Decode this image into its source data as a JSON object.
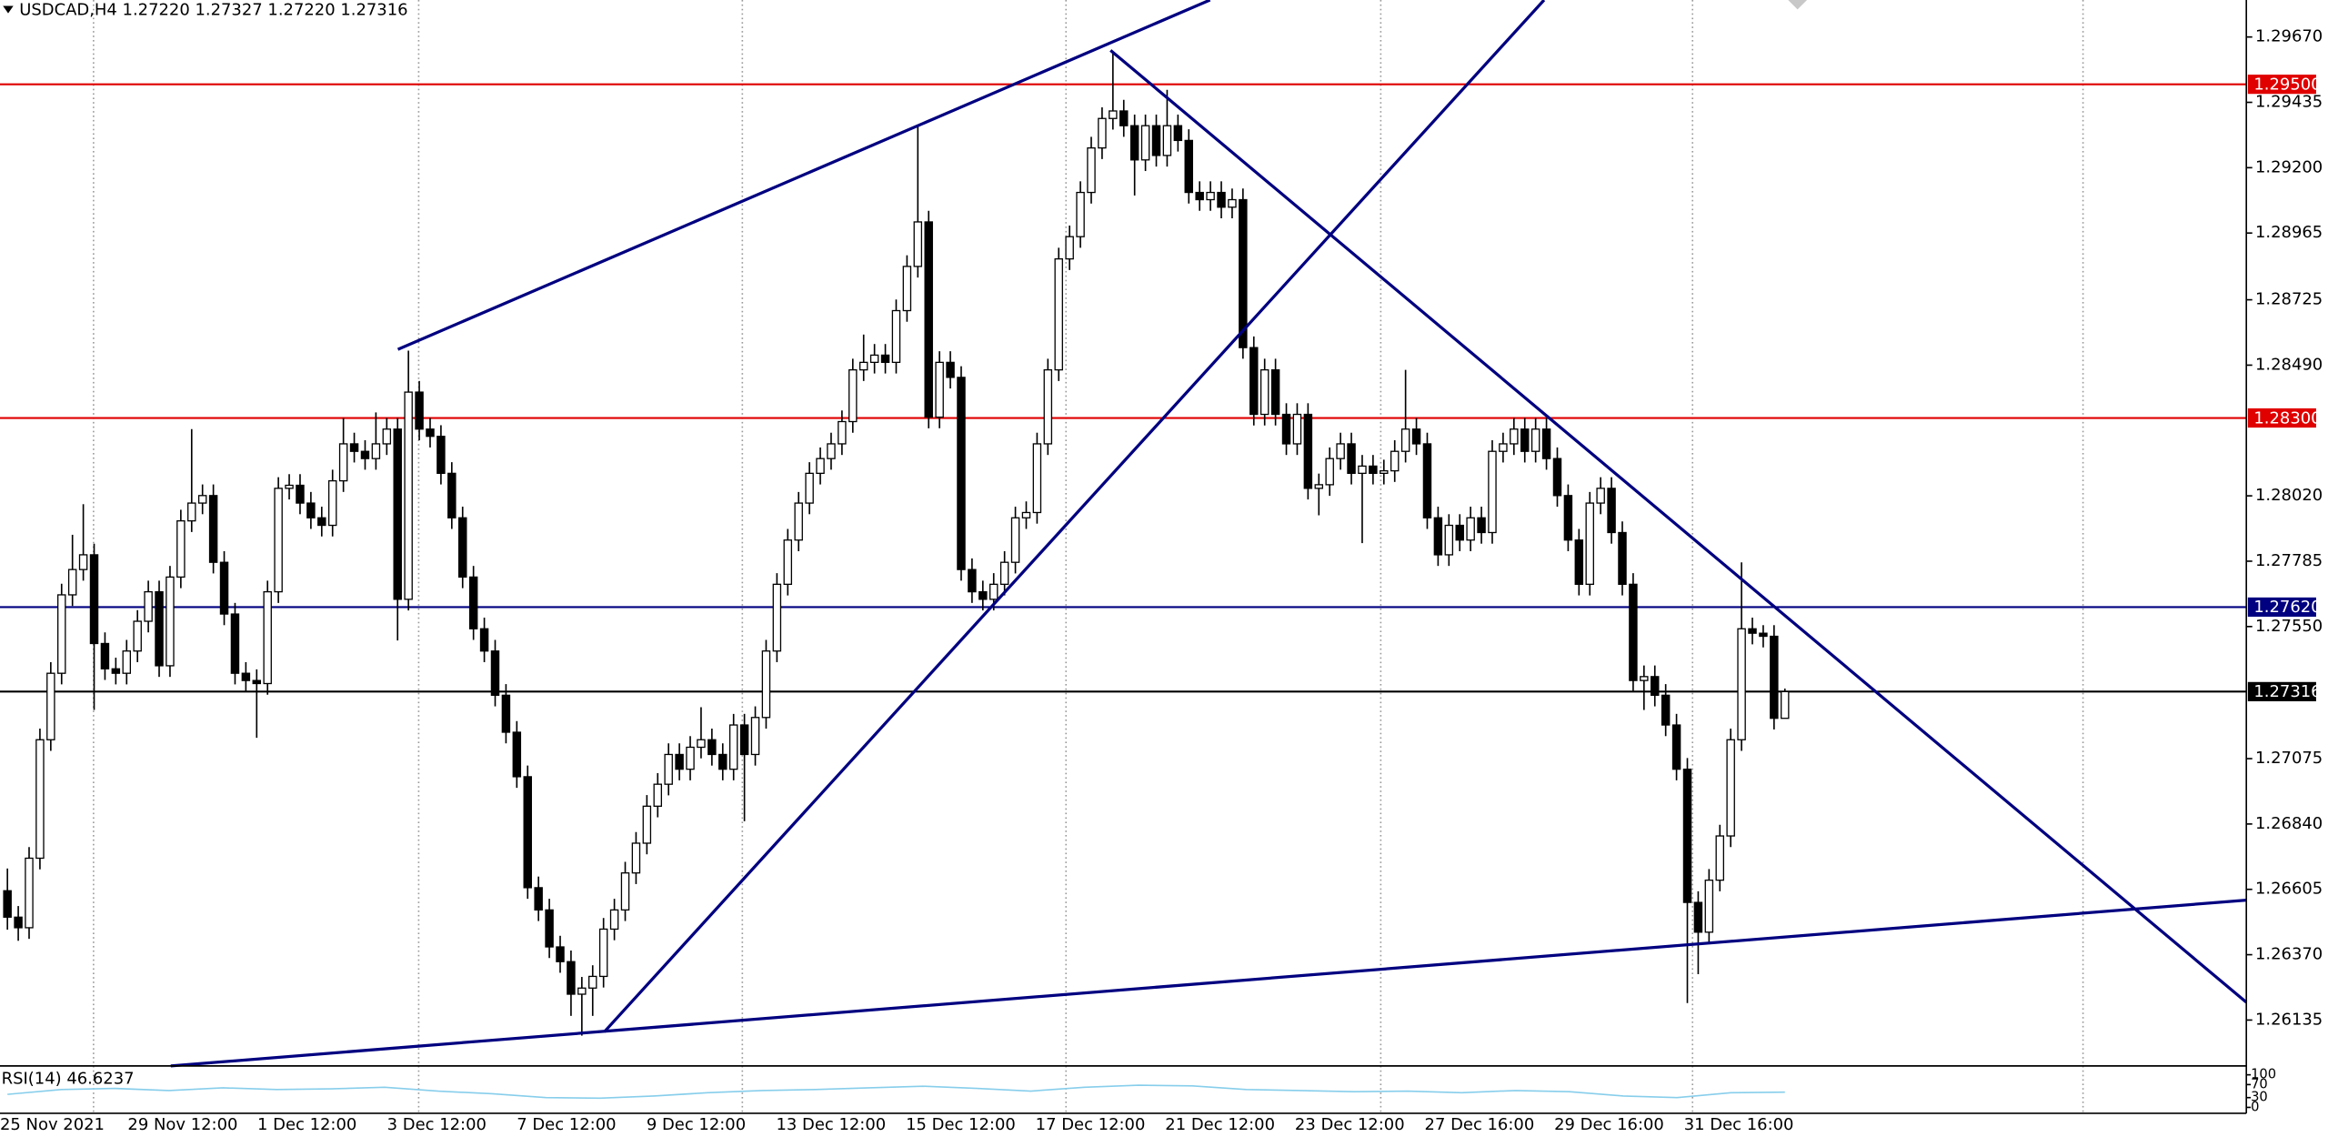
{
  "chart_data": {
    "type": "candlestick",
    "title": "USDCAD,H4  1.27220 1.27327 1.27220 1.27316",
    "ylim": [
      1.2597,
      1.29803
    ],
    "yticks": [
      {
        "value": 1.2967,
        "label": "1.29670"
      },
      1.29435,
      {
        "value": 1.292,
        "label": "1.29200"
      },
      1.28965,
      1.28725,
      {
        "value": 1.2849,
        "label": "1.28490"
      },
      {
        "value": 1.2802,
        "label": "1.28020"
      },
      1.27785,
      {
        "value": 1.2755,
        "label": "1.27550"
      },
      1.27075,
      {
        "value": 1.2684,
        "label": "1.26840"
      },
      1.26605,
      {
        "value": 1.2637,
        "label": "1.26370"
      },
      1.26135
    ],
    "xlabels": [
      "25 Nov 2021",
      "29 Nov 12:00",
      "1 Dec 12:00",
      "3 Dec 12:00",
      "7 Dec 12:00",
      "9 Dec 12:00",
      "13 Dec 12:00",
      "15 Dec 12:00",
      "17 Dec 12:00",
      "21 Dec 12:00",
      "23 Dec 12:00",
      "27 Dec 16:00",
      "29 Dec 16:00",
      "31 Dec 16:00"
    ],
    "up_color": "#ffffff",
    "down_color": "#000000",
    "levels": [
      {
        "value": 1.295,
        "label": "1.29500",
        "color": "#e00000"
      },
      {
        "value": 1.283,
        "label": "1.28300",
        "color": "#e00000"
      },
      {
        "value": 1.2762,
        "label": "1.27620",
        "color": "#000080"
      },
      {
        "value": 1.27316,
        "label": "1.27316",
        "color": "#000000"
      }
    ],
    "rsi": {
      "label": "RSI(14) 46.6237",
      "color": "#87ceeb",
      "ylim": [
        0,
        100
      ],
      "yticks": [
        100,
        70,
        30,
        0
      ],
      "values": [
        40,
        55,
        58,
        52,
        60,
        55,
        57,
        62,
        50,
        42,
        30,
        28,
        35,
        45,
        52,
        55,
        60,
        65,
        58,
        50,
        62,
        68,
        66,
        55,
        52,
        48,
        50,
        45,
        52,
        48,
        35,
        30,
        45,
        47
      ]
    },
    "candles": [
      [
        1.266,
        1.2668,
        1.2646,
        1.26505
      ],
      [
        1.26505,
        1.26545,
        1.2642,
        1.26467
      ],
      [
        1.26467,
        1.26757,
        1.26427,
        1.26717
      ],
      [
        1.26717,
        1.27183,
        1.26677,
        1.27143
      ],
      [
        1.27143,
        1.27422,
        1.27103,
        1.27382
      ],
      [
        1.27382,
        1.27704,
        1.27342,
        1.27664
      ],
      [
        1.27664,
        1.2788,
        1.27624,
        1.27755
      ],
      [
        1.27755,
        1.2799,
        1.27715,
        1.27808
      ],
      [
        1.27808,
        1.27848,
        1.2725,
        1.27489
      ],
      [
        1.27489,
        1.27529,
        1.27358,
        1.27398
      ],
      [
        1.27398,
        1.27438,
        1.27342,
        1.27382
      ],
      [
        1.27382,
        1.27502,
        1.27342,
        1.27462
      ],
      [
        1.27462,
        1.27609,
        1.27422,
        1.27569
      ],
      [
        1.27569,
        1.27715,
        1.27529,
        1.27675
      ],
      [
        1.27675,
        1.27715,
        1.27369,
        1.27409
      ],
      [
        1.27409,
        1.27768,
        1.27369,
        1.27728
      ],
      [
        1.27728,
        1.2797,
        1.27688,
        1.2793
      ],
      [
        1.2793,
        1.2826,
        1.2789,
        1.27994
      ],
      [
        1.27994,
        1.28061,
        1.27954,
        1.28021
      ],
      [
        1.28021,
        1.28061,
        1.27741,
        1.27781
      ],
      [
        1.27781,
        1.27821,
        1.27555,
        1.27595
      ],
      [
        1.27595,
        1.27635,
        1.27342,
        1.27382
      ],
      [
        1.27382,
        1.27422,
        1.27316,
        1.27356
      ],
      [
        1.27356,
        1.27396,
        1.2715,
        1.27345
      ],
      [
        1.27345,
        1.27715,
        1.27305,
        1.27675
      ],
      [
        1.27675,
        1.28087,
        1.27635,
        1.28047
      ],
      [
        1.28047,
        1.28098,
        1.28007,
        1.28058
      ],
      [
        1.28058,
        1.28098,
        1.27954,
        1.27994
      ],
      [
        1.27994,
        1.28034,
        1.27901,
        1.27941
      ],
      [
        1.27941,
        1.27981,
        1.27874,
        1.27914
      ],
      [
        1.27914,
        1.28114,
        1.27874,
        1.28074
      ],
      [
        1.28074,
        1.283,
        1.28034,
        1.28207
      ],
      [
        1.28207,
        1.28247,
        1.2814,
        1.2818
      ],
      [
        1.2818,
        1.2822,
        1.28114,
        1.28154
      ],
      [
        1.28154,
        1.2832,
        1.28114,
        1.28207
      ],
      [
        1.28207,
        1.283,
        1.28167,
        1.2826
      ],
      [
        1.2826,
        1.283,
        1.275,
        1.27648
      ],
      [
        1.27648,
        1.28542,
        1.27608,
        1.28393
      ],
      [
        1.28393,
        1.28433,
        1.2822,
        1.2826
      ],
      [
        1.2826,
        1.283,
        1.28194,
        1.28234
      ],
      [
        1.28234,
        1.28274,
        1.28061,
        1.28101
      ],
      [
        1.28101,
        1.28141,
        1.27901,
        1.27941
      ],
      [
        1.27941,
        1.27981,
        1.27688,
        1.27728
      ],
      [
        1.27728,
        1.27768,
        1.27502,
        1.27542
      ],
      [
        1.27542,
        1.27582,
        1.27422,
        1.27462
      ],
      [
        1.27462,
        1.27502,
        1.27263,
        1.27303
      ],
      [
        1.27303,
        1.27343,
        1.2713,
        1.2717
      ],
      [
        1.2717,
        1.2721,
        1.2697,
        1.2701
      ],
      [
        1.2701,
        1.2705,
        1.26571,
        1.26611
      ],
      [
        1.26611,
        1.26651,
        1.26491,
        1.26531
      ],
      [
        1.26531,
        1.26571,
        1.26358,
        1.26398
      ],
      [
        1.26398,
        1.26438,
        1.26305,
        1.26345
      ],
      [
        1.26345,
        1.26385,
        1.2615,
        1.26228
      ],
      [
        1.26228,
        1.2629,
        1.26079,
        1.2625
      ],
      [
        1.2625,
        1.26332,
        1.2615,
        1.26292
      ],
      [
        1.26292,
        1.26502,
        1.26252,
        1.26462
      ],
      [
        1.26462,
        1.26571,
        1.26422,
        1.26531
      ],
      [
        1.26531,
        1.26704,
        1.26491,
        1.26664
      ],
      [
        1.26664,
        1.26811,
        1.26624,
        1.26771
      ],
      [
        1.26771,
        1.26944,
        1.26731,
        1.26904
      ],
      [
        1.26904,
        1.27023,
        1.26864,
        1.26983
      ],
      [
        1.26983,
        1.2713,
        1.26943,
        1.2709
      ],
      [
        1.2709,
        1.2713,
        1.26997,
        1.27037
      ],
      [
        1.27037,
        1.27156,
        1.26997,
        1.27116
      ],
      [
        1.27116,
        1.2726,
        1.27076,
        1.27143
      ],
      [
        1.27143,
        1.27183,
        1.2705,
        1.2709
      ],
      [
        1.2709,
        1.2713,
        1.26997,
        1.27037
      ],
      [
        1.27037,
        1.27236,
        1.26997,
        1.27196
      ],
      [
        1.27196,
        1.27236,
        1.2685,
        1.2709
      ],
      [
        1.2709,
        1.27263,
        1.2705,
        1.27223
      ],
      [
        1.27223,
        1.27502,
        1.27183,
        1.27462
      ],
      [
        1.27462,
        1.27742,
        1.27422,
        1.27702
      ],
      [
        1.27702,
        1.27901,
        1.27662,
        1.27861
      ],
      [
        1.27861,
        1.28034,
        1.27821,
        1.27994
      ],
      [
        1.27994,
        1.28141,
        1.27954,
        1.28101
      ],
      [
        1.28101,
        1.28194,
        1.28061,
        1.28154
      ],
      [
        1.28154,
        1.28247,
        1.28114,
        1.28207
      ],
      [
        1.28207,
        1.28327,
        1.28167,
        1.28287
      ],
      [
        1.28287,
        1.28513,
        1.28247,
        1.28473
      ],
      [
        1.28473,
        1.286,
        1.28433,
        1.285
      ],
      [
        1.285,
        1.28566,
        1.2846,
        1.28526
      ],
      [
        1.28526,
        1.28566,
        1.2846,
        1.285
      ],
      [
        1.285,
        1.28726,
        1.2846,
        1.28686
      ],
      [
        1.28686,
        1.28885,
        1.28646,
        1.28845
      ],
      [
        1.28845,
        1.29351,
        1.28805,
        1.29005
      ],
      [
        1.29005,
        1.29045,
        1.28263,
        1.28303
      ],
      [
        1.28303,
        1.2854,
        1.28263,
        1.285
      ],
      [
        1.285,
        1.2854,
        1.28406,
        1.28446
      ],
      [
        1.28446,
        1.28486,
        1.27715,
        1.27755
      ],
      [
        1.27755,
        1.27795,
        1.27635,
        1.27675
      ],
      [
        1.27675,
        1.27715,
        1.27608,
        1.27648
      ],
      [
        1.27648,
        1.27742,
        1.27608,
        1.27702
      ],
      [
        1.27702,
        1.27821,
        1.27662,
        1.27781
      ],
      [
        1.27781,
        1.27981,
        1.27741,
        1.27941
      ],
      [
        1.27941,
        1.28,
        1.27901,
        1.2796
      ],
      [
        1.2796,
        1.28247,
        1.2792,
        1.28207
      ],
      [
        1.28207,
        1.28513,
        1.28167,
        1.28473
      ],
      [
        1.28473,
        1.28912,
        1.28433,
        1.28872
      ],
      [
        1.28872,
        1.28992,
        1.28832,
        1.28952
      ],
      [
        1.28952,
        1.29151,
        1.28912,
        1.29111
      ],
      [
        1.29111,
        1.29311,
        1.29071,
        1.29271
      ],
      [
        1.29271,
        1.29417,
        1.29231,
        1.29377
      ],
      [
        1.29377,
        1.29617,
        1.29337,
        1.29404
      ],
      [
        1.29404,
        1.29444,
        1.29311,
        1.29351
      ],
      [
        1.29351,
        1.29391,
        1.291,
        1.29228
      ],
      [
        1.29228,
        1.29391,
        1.29188,
        1.29351
      ],
      [
        1.29351,
        1.29391,
        1.29204,
        1.29244
      ],
      [
        1.29244,
        1.2948,
        1.29204,
        1.29351
      ],
      [
        1.29351,
        1.29391,
        1.29258,
        1.29298
      ],
      [
        1.29298,
        1.29338,
        1.29071,
        1.29111
      ],
      [
        1.29111,
        1.29151,
        1.29045,
        1.29085
      ],
      [
        1.29085,
        1.29151,
        1.29045,
        1.29111
      ],
      [
        1.29111,
        1.29151,
        1.29018,
        1.29058
      ],
      [
        1.29058,
        1.29125,
        1.29018,
        1.29085
      ],
      [
        1.29085,
        1.29125,
        1.28513,
        1.28553
      ],
      [
        1.28553,
        1.28593,
        1.28273,
        1.28313
      ],
      [
        1.28313,
        1.28513,
        1.28273,
        1.28473
      ],
      [
        1.28473,
        1.28513,
        1.28273,
        1.28313
      ],
      [
        1.28313,
        1.28353,
        1.28167,
        1.28207
      ],
      [
        1.28207,
        1.28353,
        1.28167,
        1.28313
      ],
      [
        1.28313,
        1.28353,
        1.28007,
        1.28047
      ],
      [
        1.28047,
        1.281,
        1.2795,
        1.2806
      ],
      [
        1.2806,
        1.28194,
        1.2802,
        1.28154
      ],
      [
        1.28154,
        1.28247,
        1.28114,
        1.28207
      ],
      [
        1.28207,
        1.28247,
        1.28061,
        1.28101
      ],
      [
        1.28101,
        1.28167,
        1.2785,
        1.28127
      ],
      [
        1.28127,
        1.28167,
        1.28061,
        1.28101
      ],
      [
        1.28101,
        1.2815,
        1.28061,
        1.2811
      ],
      [
        1.2811,
        1.2822,
        1.2807,
        1.2818
      ],
      [
        1.2818,
        1.28473,
        1.2814,
        1.2826
      ],
      [
        1.2826,
        1.283,
        1.28167,
        1.28207
      ],
      [
        1.28207,
        1.28247,
        1.27901,
        1.27941
      ],
      [
        1.27941,
        1.27981,
        1.27768,
        1.27808
      ],
      [
        1.27808,
        1.27954,
        1.27768,
        1.27914
      ],
      [
        1.27914,
        1.27954,
        1.27821,
        1.27861
      ],
      [
        1.27861,
        1.27981,
        1.27821,
        1.27941
      ],
      [
        1.27941,
        1.27981,
        1.27848,
        1.27888
      ],
      [
        1.27888,
        1.2822,
        1.27848,
        1.2818
      ],
      [
        1.2818,
        1.28247,
        1.2814,
        1.28207
      ],
      [
        1.28207,
        1.283,
        1.28167,
        1.2826
      ],
      [
        1.2826,
        1.283,
        1.2814,
        1.2818
      ],
      [
        1.2818,
        1.283,
        1.2814,
        1.2826
      ],
      [
        1.2826,
        1.283,
        1.28114,
        1.28154
      ],
      [
        1.28154,
        1.28194,
        1.27981,
        1.28021
      ],
      [
        1.28021,
        1.28061,
        1.27821,
        1.27861
      ],
      [
        1.27861,
        1.27901,
        1.27662,
        1.27702
      ],
      [
        1.27702,
        1.28034,
        1.27662,
        1.27994
      ],
      [
        1.27994,
        1.28087,
        1.27954,
        1.28047
      ],
      [
        1.28047,
        1.28087,
        1.27848,
        1.27888
      ],
      [
        1.27888,
        1.27928,
        1.27662,
        1.27702
      ],
      [
        1.27702,
        1.27742,
        1.27316,
        1.27356
      ],
      [
        1.27356,
        1.2741,
        1.2725,
        1.2737
      ],
      [
        1.2737,
        1.2741,
        1.27263,
        1.27303
      ],
      [
        1.27303,
        1.27343,
        1.27156,
        1.27196
      ],
      [
        1.27196,
        1.27236,
        1.26997,
        1.27037
      ],
      [
        1.27037,
        1.27077,
        1.26196,
        1.26558
      ],
      [
        1.26558,
        1.26598,
        1.263,
        1.26451
      ],
      [
        1.26451,
        1.26678,
        1.26411,
        1.26638
      ],
      [
        1.26638,
        1.26837,
        1.26598,
        1.26797
      ],
      [
        1.26797,
        1.27183,
        1.26757,
        1.27143
      ],
      [
        1.27143,
        1.27781,
        1.27103,
        1.27542
      ],
      [
        1.27542,
        1.27582,
        1.27486,
        1.27526
      ],
      [
        1.27526,
        1.27555,
        1.27475,
        1.27515
      ],
      [
        1.27515,
        1.27555,
        1.2718,
        1.2722
      ],
      [
        1.2722,
        1.27327,
        1.2722,
        1.27316
      ]
    ]
  }
}
